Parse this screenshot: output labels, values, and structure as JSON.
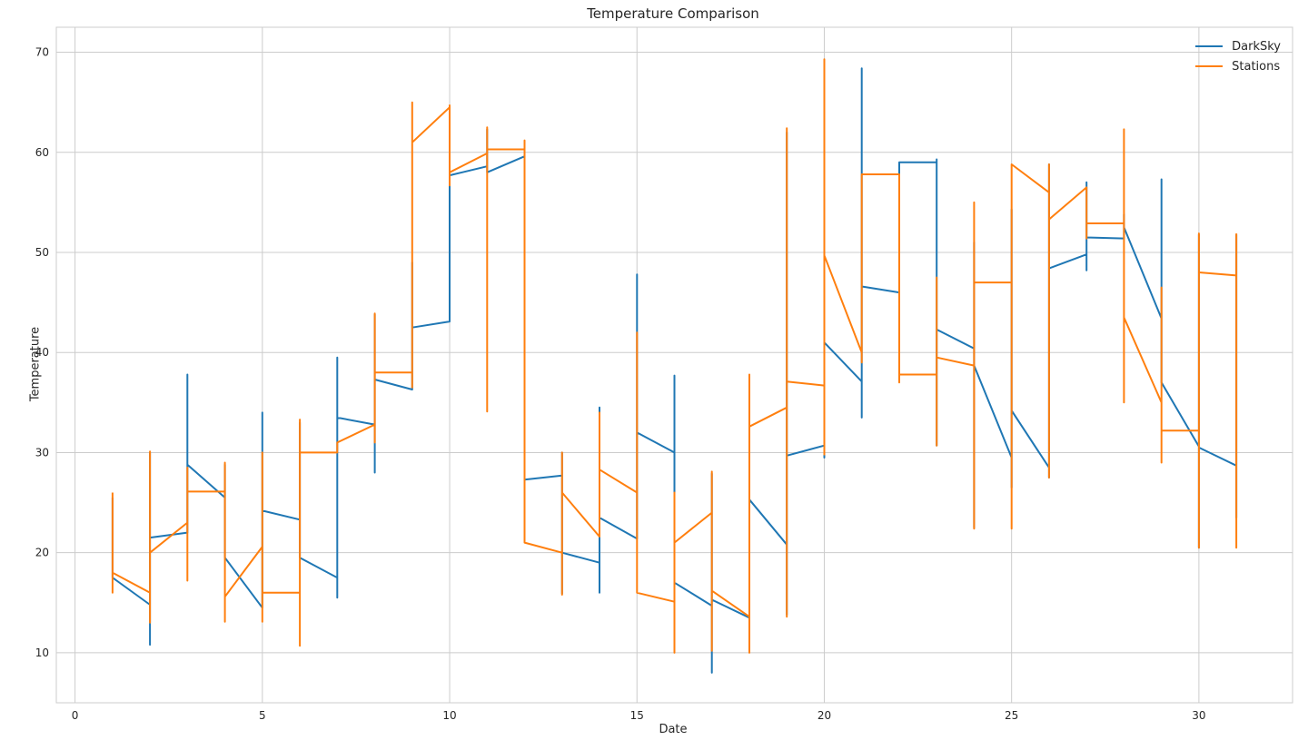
{
  "chart_data": {
    "type": "line",
    "title": "Temperature Comparison",
    "xlabel": "Date",
    "ylabel": "Temperature",
    "xlim": [
      -0.5,
      32.5
    ],
    "ylim": [
      5,
      72.5
    ],
    "xticks": [
      0,
      5,
      10,
      15,
      20,
      25,
      30
    ],
    "yticks": [
      10,
      20,
      30,
      40,
      50,
      60,
      70
    ],
    "grid": true,
    "legend": "top-right",
    "series": [
      {
        "name": "DarkSky",
        "color": "#1f77b4",
        "points": [
          [
            1,
            25.5
          ],
          [
            1,
            17.5
          ],
          [
            2,
            14.8
          ],
          [
            2,
            10.8
          ],
          [
            2,
            30.0
          ],
          [
            2,
            21.5
          ],
          [
            3,
            22.0
          ],
          [
            3,
            37.8
          ],
          [
            3,
            28.8
          ],
          [
            4,
            25.5
          ],
          [
            4,
            28.8
          ],
          [
            4,
            19.5
          ],
          [
            5,
            14.5
          ],
          [
            5,
            34.0
          ],
          [
            5,
            24.2
          ],
          [
            6,
            23.3
          ],
          [
            6,
            33.0
          ],
          [
            6,
            19.5
          ],
          [
            7,
            17.5
          ],
          [
            7,
            15.5
          ],
          [
            7,
            39.5
          ],
          [
            7,
            33.5
          ],
          [
            8,
            32.8
          ],
          [
            8,
            28.0
          ],
          [
            8,
            43.8
          ],
          [
            8,
            37.3
          ],
          [
            9,
            36.3
          ],
          [
            9,
            49.0
          ],
          [
            9,
            42.5
          ],
          [
            10,
            43.1
          ],
          [
            10,
            64.5
          ],
          [
            10,
            57.7
          ],
          [
            11,
            58.6
          ],
          [
            11,
            62.3
          ],
          [
            11,
            58.0
          ],
          [
            12,
            59.6
          ],
          [
            12,
            27.3
          ],
          [
            13,
            27.7
          ],
          [
            13,
            15.9
          ],
          [
            13,
            30.0
          ],
          [
            13,
            20.0
          ],
          [
            14,
            19.0
          ],
          [
            14,
            16.0
          ],
          [
            14,
            34.5
          ],
          [
            14,
            23.5
          ],
          [
            15,
            21.4
          ],
          [
            15,
            47.8
          ],
          [
            15,
            32.0
          ],
          [
            16,
            30.0
          ],
          [
            16,
            37.7
          ],
          [
            16,
            10.1
          ],
          [
            16,
            17.0
          ],
          [
            17,
            14.7
          ],
          [
            17,
            8.0
          ],
          [
            17,
            27.9
          ],
          [
            17,
            15.3
          ],
          [
            18,
            13.5
          ],
          [
            18,
            37.5
          ],
          [
            18,
            25.3
          ],
          [
            19,
            20.8
          ],
          [
            19,
            62.0
          ],
          [
            19,
            13.8
          ],
          [
            19,
            29.7
          ],
          [
            20,
            30.7
          ],
          [
            20,
            29.5
          ],
          [
            20,
            60.0
          ],
          [
            20,
            41.0
          ],
          [
            21,
            37.1
          ],
          [
            21,
            33.5
          ],
          [
            21,
            68.4
          ],
          [
            21,
            46.6
          ],
          [
            22,
            46.0
          ],
          [
            22,
            42.0
          ],
          [
            22,
            59.0
          ],
          [
            23,
            59.0
          ],
          [
            23,
            59.3
          ],
          [
            23,
            30.7
          ],
          [
            23,
            42.3
          ],
          [
            24,
            40.4
          ],
          [
            24,
            51.0
          ],
          [
            24,
            22.5
          ],
          [
            24,
            38.7
          ],
          [
            25,
            29.5
          ],
          [
            25,
            54.3
          ],
          [
            25,
            26.5
          ],
          [
            25,
            34.2
          ],
          [
            26,
            28.5
          ],
          [
            26,
            27.5
          ],
          [
            26,
            58.8
          ],
          [
            26,
            48.4
          ],
          [
            27,
            49.8
          ],
          [
            27,
            48.2
          ],
          [
            27,
            57.0
          ],
          [
            27,
            51.5
          ],
          [
            28,
            51.4
          ],
          [
            28,
            53.8
          ],
          [
            28,
            52.5
          ],
          [
            29,
            43.4
          ],
          [
            29,
            57.3
          ],
          [
            29,
            37.0
          ],
          [
            30,
            30.6
          ],
          [
            30,
            51.8
          ],
          [
            30,
            20.5
          ],
          [
            30,
            30.5
          ],
          [
            31,
            28.7
          ],
          [
            31,
            45.0
          ],
          [
            31,
            23.5
          ],
          [
            31,
            51.8
          ]
        ]
      },
      {
        "name": "Stations",
        "color": "#ff7f0e",
        "points": [
          [
            1,
            26.0
          ],
          [
            1,
            16.0
          ],
          [
            1,
            18.0
          ],
          [
            2,
            16.0
          ],
          [
            2,
            13.0
          ],
          [
            2,
            30.1
          ],
          [
            2,
            20.0
          ],
          [
            3,
            23.0
          ],
          [
            3,
            17.2
          ],
          [
            3,
            28.5
          ],
          [
            3,
            26.1
          ],
          [
            4,
            26.1
          ],
          [
            4,
            13.1
          ],
          [
            4,
            29.0
          ],
          [
            4,
            15.6
          ],
          [
            5,
            20.6
          ],
          [
            5,
            13.1
          ],
          [
            5,
            30.0
          ],
          [
            5,
            16.0
          ],
          [
            6,
            16.0
          ],
          [
            6,
            10.7
          ],
          [
            6,
            33.3
          ],
          [
            6,
            30.0
          ],
          [
            7,
            30.0
          ],
          [
            7,
            31.0
          ],
          [
            8,
            32.8
          ],
          [
            8,
            31.0
          ],
          [
            8,
            43.9
          ],
          [
            8,
            38.0
          ],
          [
            9,
            38.0
          ],
          [
            9,
            36.5
          ],
          [
            9,
            65.0
          ],
          [
            9,
            61.0
          ],
          [
            10,
            64.5
          ],
          [
            10,
            64.7
          ],
          [
            10,
            56.7
          ],
          [
            10,
            58.0
          ],
          [
            11,
            59.9
          ],
          [
            11,
            34.1
          ],
          [
            11,
            62.5
          ],
          [
            11,
            60.3
          ],
          [
            12,
            60.3
          ],
          [
            12,
            61.2
          ],
          [
            12,
            21.0
          ],
          [
            13,
            20.0
          ],
          [
            13,
            15.8
          ],
          [
            13,
            30.0
          ],
          [
            13,
            26.0
          ],
          [
            14,
            21.6
          ],
          [
            14,
            34.0
          ],
          [
            14,
            28.3
          ],
          [
            15,
            26.0
          ],
          [
            15,
            42.0
          ],
          [
            15,
            16.0
          ],
          [
            16,
            15.1
          ],
          [
            16,
            10.0
          ],
          [
            16,
            26.0
          ],
          [
            16,
            21.0
          ],
          [
            17,
            24.0
          ],
          [
            17,
            10.2
          ],
          [
            17,
            28.1
          ],
          [
            17,
            16.2
          ],
          [
            18,
            13.6
          ],
          [
            18,
            10.0
          ],
          [
            18,
            37.8
          ],
          [
            18,
            32.6
          ],
          [
            19,
            34.5
          ],
          [
            19,
            13.6
          ],
          [
            19,
            62.4
          ],
          [
            19,
            37.1
          ],
          [
            20,
            36.7
          ],
          [
            20,
            29.8
          ],
          [
            20,
            69.3
          ],
          [
            20,
            49.7
          ],
          [
            21,
            40.0
          ],
          [
            21,
            39.0
          ],
          [
            21,
            57.8
          ],
          [
            22,
            57.8
          ],
          [
            22,
            37.0
          ],
          [
            22,
            37.8
          ],
          [
            23,
            37.8
          ],
          [
            23,
            30.7
          ],
          [
            23,
            47.5
          ],
          [
            23,
            39.5
          ],
          [
            24,
            38.7
          ],
          [
            24,
            22.4
          ],
          [
            24,
            55.0
          ],
          [
            24,
            47.0
          ],
          [
            25,
            47.0
          ],
          [
            25,
            22.4
          ],
          [
            25,
            58.8
          ],
          [
            26,
            56.0
          ],
          [
            26,
            27.5
          ],
          [
            26,
            58.8
          ],
          [
            26,
            53.3
          ],
          [
            27,
            56.5
          ],
          [
            27,
            51.4
          ],
          [
            27,
            52.9
          ],
          [
            28,
            52.9
          ],
          [
            28,
            35.0
          ],
          [
            28,
            62.3
          ],
          [
            28,
            43.5
          ],
          [
            29,
            35.0
          ],
          [
            29,
            29.0
          ],
          [
            29,
            46.5
          ],
          [
            29,
            32.2
          ],
          [
            30,
            32.2
          ],
          [
            30,
            20.5
          ],
          [
            30,
            51.9
          ],
          [
            30,
            48.0
          ],
          [
            31,
            47.7
          ],
          [
            31,
            20.5
          ],
          [
            31,
            51.9
          ]
        ]
      }
    ]
  }
}
